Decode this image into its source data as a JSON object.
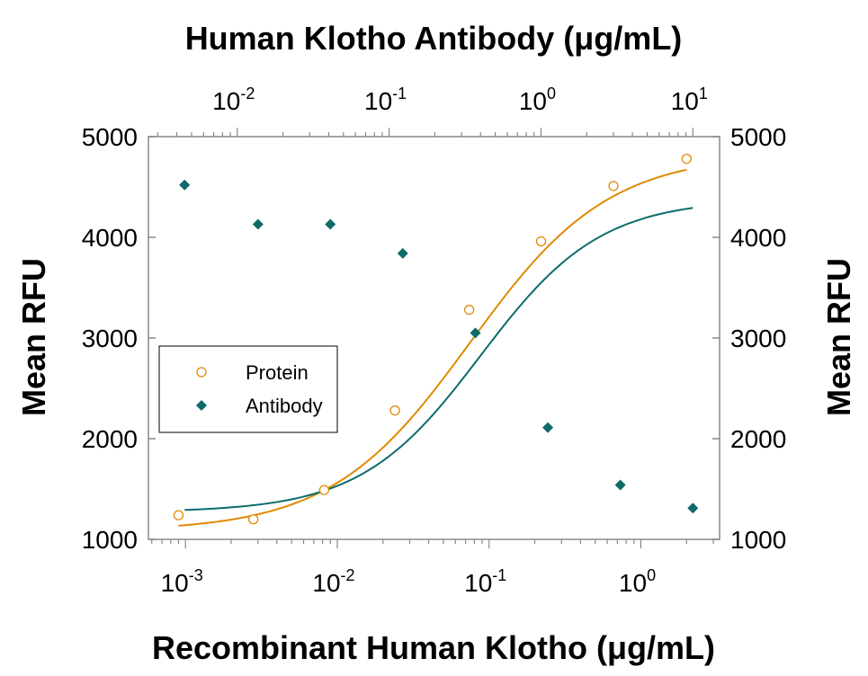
{
  "chart_data": {
    "type": "scatter",
    "top_axis_label": "Human Klotho Antibody (μg/mL)",
    "bottom_axis_label": "Recombinant Human Klotho (μg/mL)",
    "left_axis_label": "Mean RFU",
    "right_axis_label": "Mean RFU",
    "y_ticks": [
      "5000",
      "4000",
      "3000",
      "2000",
      "1000"
    ],
    "y_tick_values": [
      5000,
      4000,
      3000,
      2000,
      1000
    ],
    "ylim": [
      1000,
      5000
    ],
    "y_scale": "linear",
    "bottom_ticks": [
      {
        "base": "10",
        "exp": "-3",
        "value": 0.001
      },
      {
        "base": "10",
        "exp": "-2",
        "value": 0.01
      },
      {
        "base": "10",
        "exp": "-1",
        "value": 0.1
      },
      {
        "base": "10",
        "exp": "0",
        "value": 1
      }
    ],
    "top_ticks": [
      {
        "base": "10",
        "exp": "-2",
        "value": 0.01
      },
      {
        "base": "10",
        "exp": "-1",
        "value": 0.1
      },
      {
        "base": "10",
        "exp": "0",
        "value": 1
      },
      {
        "base": "10",
        "exp": "1",
        "value": 10
      }
    ],
    "bottom_xlim": [
      0.00057,
      3.3
    ],
    "top_xlim": [
      0.0026,
      15
    ],
    "x_scale": "log",
    "grid": false,
    "legend": {
      "placement": "center-left",
      "entries": [
        {
          "label": "Protein",
          "marker": "open-circle",
          "color": "#E08A00"
        },
        {
          "label": "Antibody",
          "marker": "filled-diamond",
          "color": "#0E6B6B"
        }
      ]
    },
    "series": [
      {
        "name": "Protein",
        "axis": "bottom",
        "color": "#E08A00",
        "marker": "open-circle",
        "x": [
          0.0009,
          0.0028,
          0.0082,
          0.024,
          0.074,
          0.22,
          0.66,
          2.0
        ],
        "y": [
          1240,
          1200,
          1490,
          2280,
          3280,
          3960,
          4510,
          4780
        ],
        "fit": {
          "bottom": 1080,
          "top": 4830,
          "ec50": 0.075,
          "hill": 0.95
        }
      },
      {
        "name": "Antibody",
        "axis": "top",
        "color": "#0E6B6B",
        "marker": "filled-diamond",
        "x": [
          0.0045,
          0.0137,
          0.041,
          0.123,
          0.37,
          1.11,
          3.33,
          10.0
        ],
        "y": [
          4520,
          4130,
          4130,
          3840,
          3050,
          2110,
          1540,
          1310
        ],
        "fit": {
          "bottom": 1270,
          "top": 4380,
          "ec50": 0.4,
          "hill": 1.1
        }
      }
    ]
  }
}
